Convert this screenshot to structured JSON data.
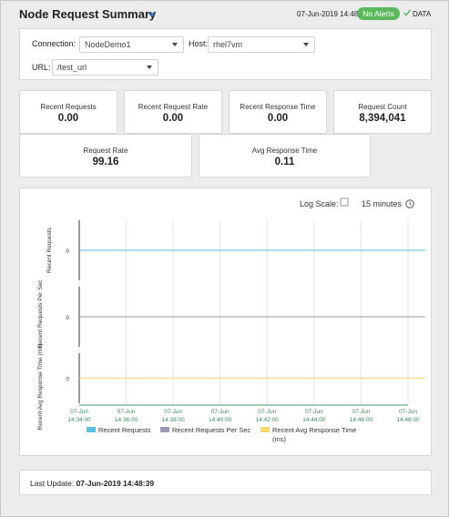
{
  "header": {
    "title": "Node Request Summary",
    "timestamp": "07-Jun-2019 14:48",
    "alert_badge": "No Alerts",
    "data_label": "DATA",
    "badge_color": "#5cb85c"
  },
  "filters": {
    "connection_label": "Connection:",
    "connection_value": "NodeDemo1",
    "host_label": "Host:",
    "host_value": "rhel7vm",
    "url_label": "URL:",
    "url_value": "/test_url"
  },
  "kpis": [
    {
      "label": "Recent Requests",
      "value": "0.00"
    },
    {
      "label": "Recent Request Rate",
      "value": "0.00"
    },
    {
      "label": "Recent Response Time",
      "value": "0.00"
    },
    {
      "label": "Request Count",
      "value": "8,394,041"
    },
    {
      "label": "Request Rate",
      "value": "99.16"
    },
    {
      "label": "Avg Response Time",
      "value": "0.11"
    }
  ],
  "chart_controls": {
    "log_scale_label": "Log Scale:",
    "time_range": "15 minutes"
  },
  "chart_data": {
    "type": "line",
    "x": [
      "07-Jun 14:34:00",
      "07-Jun 14:36:00",
      "07-Jun 14:38:00",
      "07-Jun 14:40:00",
      "07-Jun 14:42:00",
      "07-Jun 14:44:00",
      "07-Jun 14:46:00",
      "07-Jun 14:48:00"
    ],
    "x_tick_dates": [
      "07-Jun",
      "07-Jun",
      "07-Jun",
      "07-Jun",
      "07-Jun",
      "07-Jun",
      "07-Jun",
      "07-Jun"
    ],
    "x_tick_times": [
      "14:34:00",
      "14:36:00",
      "14:38:00",
      "14:40:00",
      "14:42:00",
      "14:44:00",
      "14:46:00",
      "14:48:00"
    ],
    "log_scale": false,
    "grid": true,
    "legend_position": "bottom",
    "panels": [
      {
        "ylabel": "Recent Requests",
        "ytick": "0",
        "color": "#5bc0de",
        "series": [
          {
            "name": "Recent Requests",
            "values": [
              0,
              0,
              0,
              0,
              0,
              0,
              0,
              0
            ]
          }
        ]
      },
      {
        "ylabel": "Recent Requests Per Sec",
        "ytick": "0",
        "color": "#9a99b8",
        "series": [
          {
            "name": "Recent Requests Per Sec",
            "values": [
              0,
              0,
              0,
              0,
              0,
              0,
              0,
              0
            ]
          }
        ]
      },
      {
        "ylabel": "Recent Avg Response Time (ms)",
        "ytick": "0",
        "color": "#f5d76e",
        "series": [
          {
            "name": "Recent Avg Response Time (ms)",
            "values": [
              0,
              0,
              0,
              0,
              0,
              0,
              0,
              0
            ]
          }
        ]
      }
    ],
    "legend": [
      {
        "label": "Recent Requests",
        "color": "#5bc0de"
      },
      {
        "label": "Recent Requests Per Sec",
        "color": "#9a99b8"
      },
      {
        "label": "Recent Avg Response Time",
        "label2": "(ms)",
        "color": "#f5d76e"
      }
    ]
  },
  "footer": {
    "last_update_label": "Last Update:",
    "last_update_value": "07-Jun-2019 14:48:39"
  }
}
